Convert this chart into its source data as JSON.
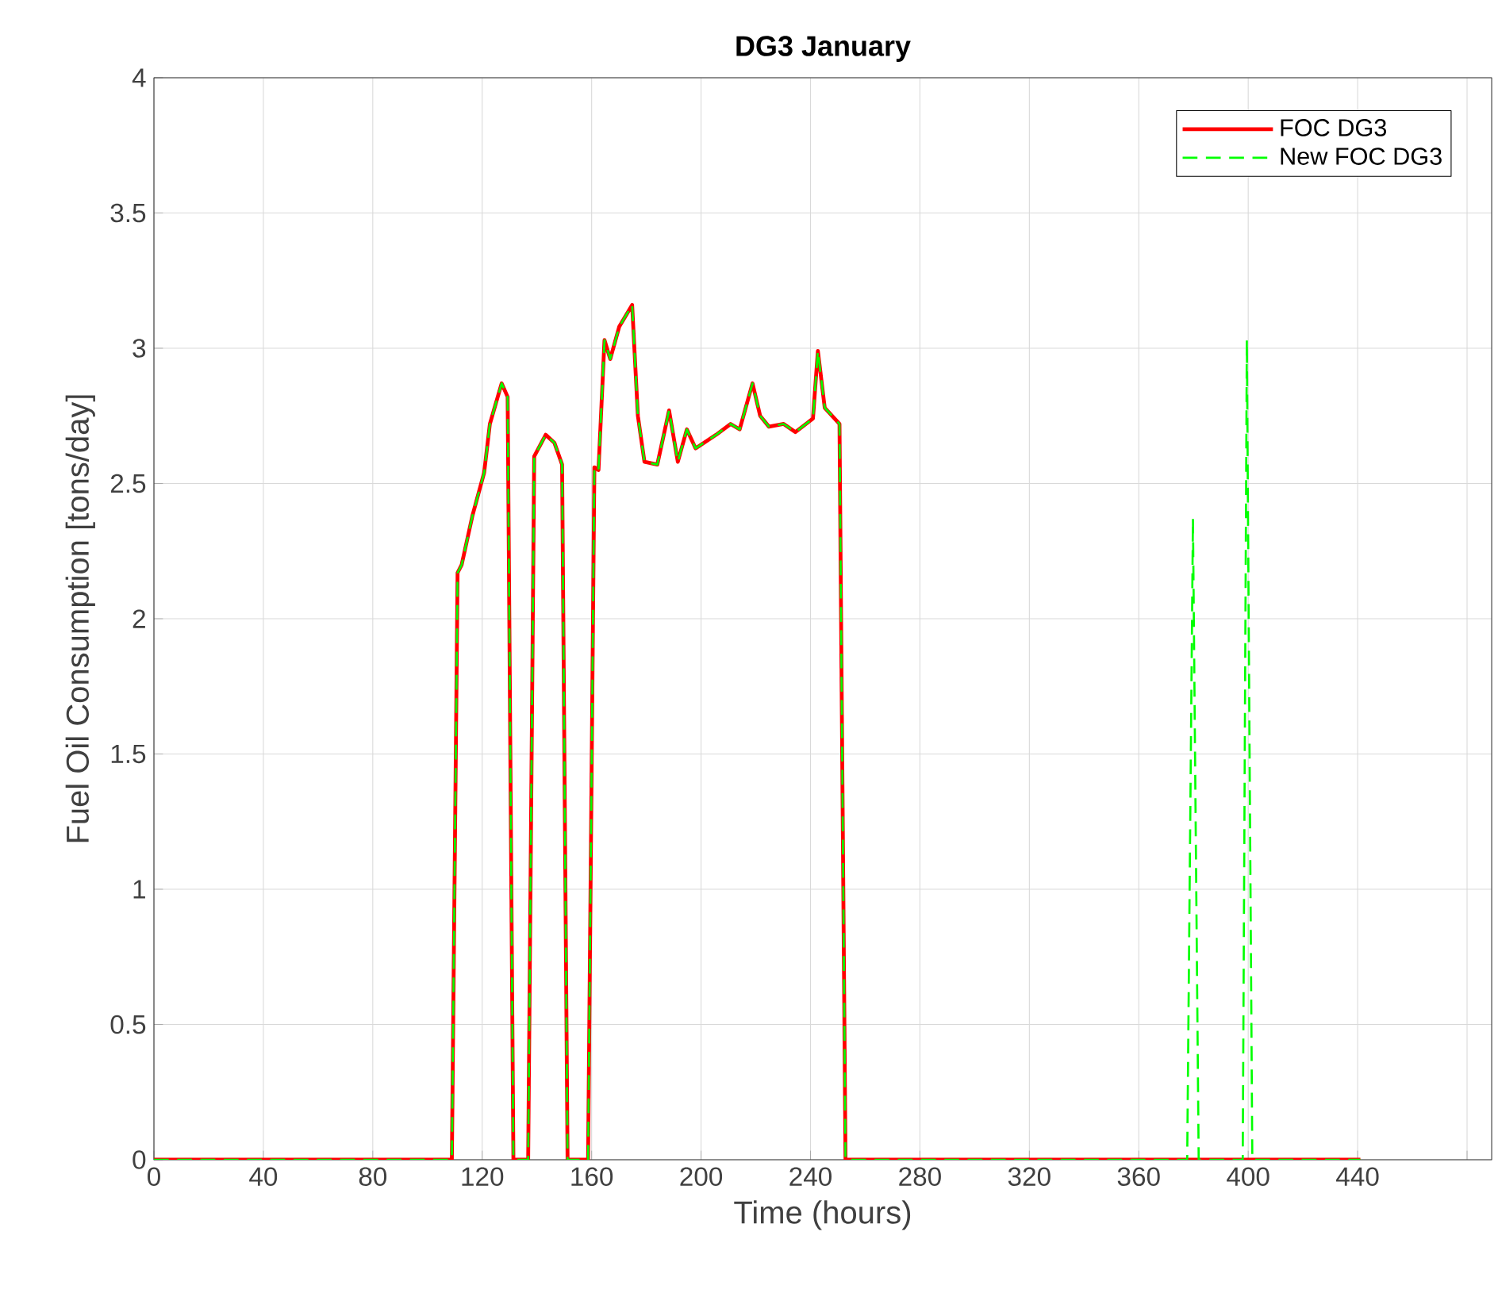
{
  "chart_data": {
    "type": "line",
    "title": "DG3 January",
    "xlabel": "Time (hours)",
    "ylabel": "Fuel Oil Consumption [tons/day]",
    "xlim": [
      0,
      489
    ],
    "ylim": [
      0,
      4
    ],
    "xticks": [
      0,
      40,
      80,
      120,
      160,
      200,
      240,
      280,
      320,
      360,
      400,
      440,
      {
        "value": 480,
        "label": null
      }
    ],
    "yticks": [
      0,
      0.5,
      1,
      1.5,
      2,
      2.5,
      3,
      3.5,
      4
    ],
    "grid": true,
    "legend": "top right",
    "marker": "none",
    "series": [
      {
        "name": "FOC DG3",
        "color": "#ff0000",
        "line_style": "solid",
        "x": [
          0,
          108.9,
          111,
          112.5,
          116.4,
          120.7,
          122.8,
          127.1,
          129.3,
          131.4,
          136.8,
          139,
          143.2,
          146.4,
          149.2,
          151.2,
          158.7,
          161.0,
          162.5,
          164.7,
          166.8,
          170.1,
          174.8,
          176.9,
          179.3,
          184.0,
          188.3,
          191.5,
          194.8,
          198.0,
          205.5,
          210.8,
          214.1,
          218.8,
          221.6,
          224.8,
          230.2,
          234.5,
          240.9,
          242.7,
          245.2,
          250.6,
          252.8,
          441
        ],
        "values": [
          0,
          0,
          2.17,
          2.2,
          2.38,
          2.54,
          2.72,
          2.87,
          2.82,
          0,
          0,
          2.6,
          2.68,
          2.65,
          2.57,
          0,
          0,
          2.56,
          2.55,
          3.03,
          2.96,
          3.08,
          3.16,
          2.75,
          2.58,
          2.57,
          2.77,
          2.58,
          2.7,
          2.63,
          2.68,
          2.72,
          2.7,
          2.87,
          2.75,
          2.71,
          2.72,
          2.69,
          2.74,
          2.99,
          2.78,
          2.72,
          0,
          0
        ]
      },
      {
        "name": "New FOC DG3",
        "color": "#00ff00",
        "line_style": "dashed",
        "x": [
          0,
          108.9,
          111,
          112.5,
          116.4,
          120.7,
          122.8,
          127.1,
          129.3,
          131.4,
          136.8,
          139,
          143.2,
          146.4,
          149.2,
          151.2,
          158.7,
          161.0,
          162.5,
          164.7,
          166.8,
          170.1,
          174.8,
          176.9,
          179.3,
          184.0,
          188.3,
          191.5,
          194.8,
          198.0,
          205.5,
          210.8,
          214.1,
          218.8,
          221.6,
          224.8,
          230.2,
          234.5,
          240.9,
          242.7,
          245.2,
          250.6,
          252.8,
          377.7,
          379.8,
          381.9,
          398.0,
          399.5,
          401.5,
          441
        ],
        "values": [
          0,
          0,
          2.17,
          2.2,
          2.38,
          2.54,
          2.72,
          2.87,
          2.82,
          0,
          0,
          2.6,
          2.68,
          2.65,
          2.57,
          0,
          0,
          2.56,
          2.55,
          3.03,
          2.96,
          3.08,
          3.16,
          2.75,
          2.58,
          2.57,
          2.77,
          2.58,
          2.7,
          2.63,
          2.68,
          2.72,
          2.7,
          2.87,
          2.75,
          2.71,
          2.72,
          2.69,
          2.74,
          2.99,
          2.78,
          2.72,
          0,
          0,
          2.37,
          0,
          0,
          3.03,
          0,
          0
        ]
      }
    ]
  }
}
